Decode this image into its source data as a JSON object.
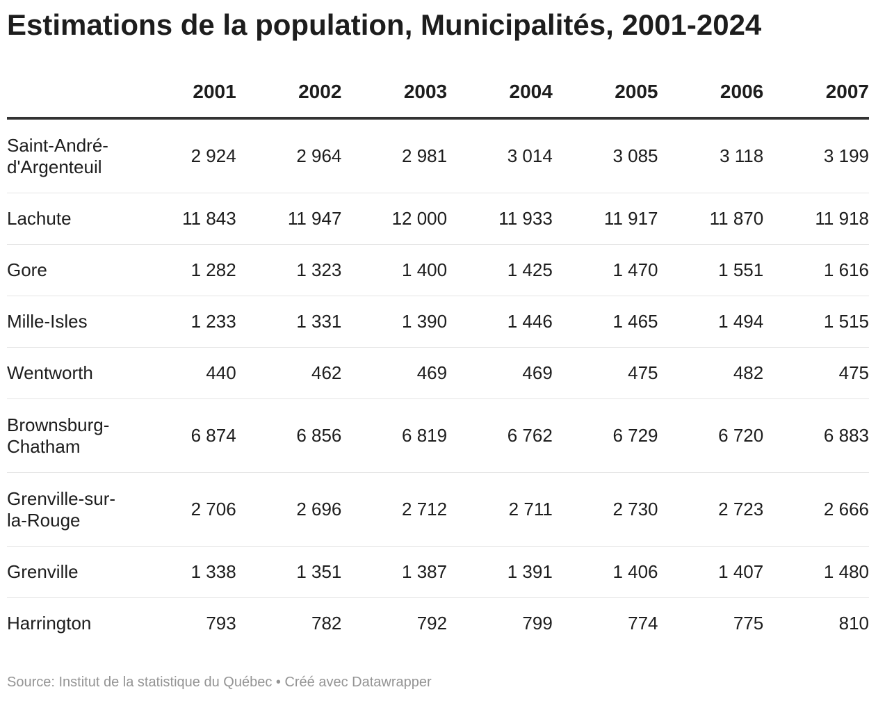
{
  "title": "Estimations de la population, Municipalités, 2001-2024",
  "source": "Source: Institut de la statistique du Québec • Créé avec Datawrapper",
  "chart_data": {
    "type": "table",
    "title": "Estimations de la population, Municipalités, 2001-2024",
    "columns": [
      "",
      "2001",
      "2002",
      "2003",
      "2004",
      "2005",
      "2006",
      "2007"
    ],
    "rows": [
      {
        "name": "Saint-André-d'Argenteuil",
        "values": [
          "2 924",
          "2 964",
          "2 981",
          "3 014",
          "3 085",
          "3 118",
          "3 199"
        ]
      },
      {
        "name": "Lachute",
        "values": [
          "11 843",
          "11 947",
          "12 000",
          "11 933",
          "11 917",
          "11 870",
          "11 918"
        ]
      },
      {
        "name": "Gore",
        "values": [
          "1 282",
          "1 323",
          "1 400",
          "1 425",
          "1 470",
          "1 551",
          "1 616"
        ]
      },
      {
        "name": "Mille-Isles",
        "values": [
          "1 233",
          "1 331",
          "1 390",
          "1 446",
          "1 465",
          "1 494",
          "1 515"
        ]
      },
      {
        "name": "Wentworth",
        "values": [
          "440",
          "462",
          "469",
          "469",
          "475",
          "482",
          "475"
        ]
      },
      {
        "name": "Brownsburg-Chatham",
        "values": [
          "6 874",
          "6 856",
          "6 819",
          "6 762",
          "6 729",
          "6 720",
          "6 883"
        ]
      },
      {
        "name": "Grenville-sur-la-Rouge",
        "values": [
          "2 706",
          "2 696",
          "2 712",
          "2 711",
          "2 730",
          "2 723",
          "2 666"
        ]
      },
      {
        "name": "Grenville",
        "values": [
          "1 338",
          "1 351",
          "1 387",
          "1 391",
          "1 406",
          "1 407",
          "1 480"
        ]
      },
      {
        "name": "Harrington",
        "values": [
          "793",
          "782",
          "792",
          "799",
          "774",
          "775",
          "810"
        ]
      }
    ]
  }
}
